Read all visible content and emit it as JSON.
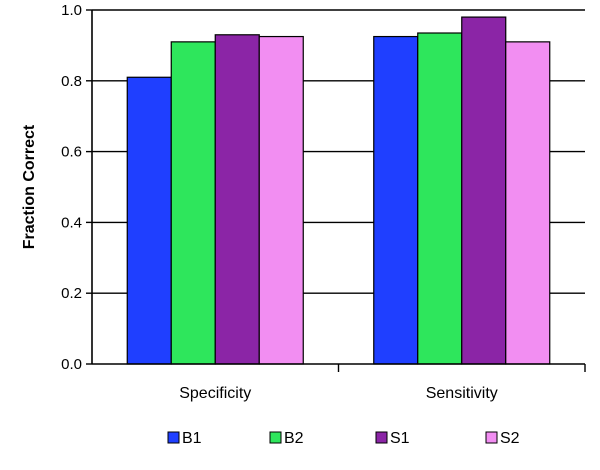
{
  "chart_data": {
    "type": "bar",
    "title": "",
    "xlabel": "",
    "ylabel": "Fraction Correct",
    "categories": [
      "Specificity",
      "Sensitivity"
    ],
    "series": [
      {
        "name": "B1",
        "values": [
          0.81,
          0.925
        ],
        "color": "#1f3fff"
      },
      {
        "name": "B2",
        "values": [
          0.91,
          0.935
        ],
        "color": "#2ee65c"
      },
      {
        "name": "S1",
        "values": [
          0.93,
          0.98
        ],
        "color": "#8b25a6"
      },
      {
        "name": "S2",
        "values": [
          0.925,
          0.91
        ],
        "color": "#f28ef2"
      }
    ],
    "ylim": [
      0,
      1.0
    ],
    "yticks": [
      "0.0",
      "0.2",
      "0.4",
      "0.6",
      "0.8",
      "1.0"
    ],
    "grid": true,
    "legend": "bottom"
  }
}
